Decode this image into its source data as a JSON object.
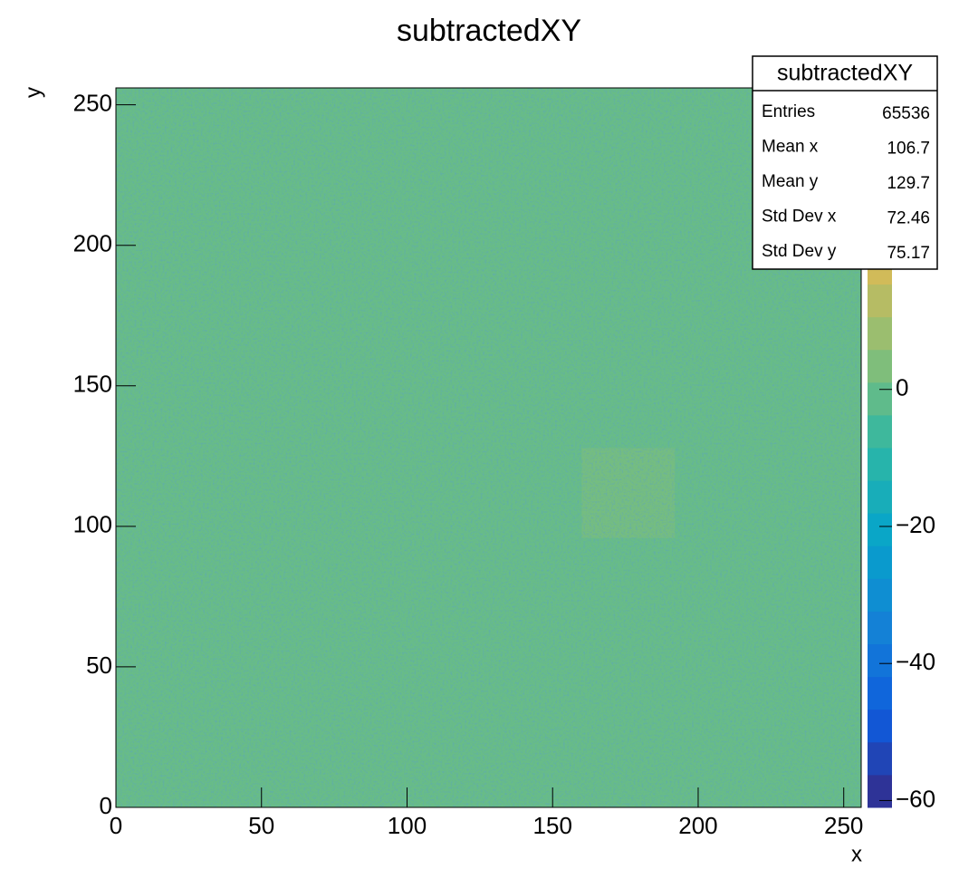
{
  "chart_data": {
    "type": "heatmap",
    "title": "subtractedXY",
    "x_label": "x",
    "y_label": "y",
    "xbins": [
      0,
      32,
      64,
      96,
      128,
      160,
      192,
      224,
      256
    ],
    "ybins": [
      0,
      32,
      64,
      96,
      128,
      160,
      192,
      224,
      256
    ],
    "z": [
      [
        0,
        0,
        0,
        0,
        0,
        0,
        0,
        0
      ],
      [
        0,
        0,
        0,
        0,
        0,
        0,
        0,
        0
      ],
      [
        0,
        0,
        0,
        0,
        0,
        0,
        0,
        0
      ],
      [
        0,
        0,
        0,
        0,
        0,
        2,
        0,
        0
      ],
      [
        0,
        0,
        0,
        0,
        0,
        0,
        0,
        0
      ],
      [
        0,
        0,
        0,
        0,
        0,
        0,
        0,
        0
      ],
      [
        0,
        0,
        0,
        0,
        0,
        0,
        0,
        0
      ],
      [
        0,
        0,
        0,
        0,
        0,
        0,
        0,
        0
      ]
    ],
    "xlim": [
      0,
      256
    ],
    "ylim": [
      0,
      256
    ],
    "xticks": [
      0,
      50,
      100,
      150,
      200,
      250
    ],
    "yticks": [
      0,
      50,
      100,
      150,
      200,
      250
    ],
    "zlim": [
      -61,
      44
    ],
    "zticks": [
      {
        "value": -60,
        "label": "−60"
      },
      {
        "value": -40,
        "label": "−40"
      },
      {
        "value": -20,
        "label": "−20"
      },
      0
    ],
    "palette": [
      "#352a87",
      "#0f5cdd",
      "#1481d6",
      "#06a4ca",
      "#2eb7a4",
      "#87bf77",
      "#d1bb59",
      "#fec832",
      "#f9fb0e"
    ],
    "stats": {
      "title": "subtractedXY",
      "rows": [
        {
          "label": "Entries",
          "value": 65536
        },
        {
          "label": "Mean x",
          "value": 106.7
        },
        {
          "label": "Mean y",
          "value": 129.7
        },
        {
          "label": "Std Dev x",
          "value": 72.46
        },
        {
          "label": "Std Dev y",
          "value": 75.17
        }
      ]
    }
  }
}
